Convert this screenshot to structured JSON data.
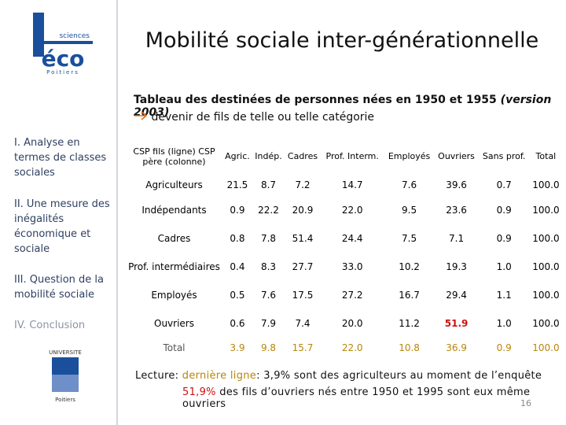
{
  "logo": {
    "top": "sciences",
    "main": "éco",
    "bottom": "Poitiers"
  },
  "university_logo": {
    "top": "UNIVERSITE",
    "bottom": "Poitiers"
  },
  "header": {
    "title": "Mobilité sociale inter-générationnelle"
  },
  "sidebar": [
    "I. Analyse en termes de classes sociales",
    "II. Une mesure des inégalités économique et sociale",
    "III. Question de la mobilité sociale",
    "IV. Conclusion"
  ],
  "caption": {
    "line1": "Tableau des destinées de personnes nées en 1950 et 1955",
    "line1_note": "(version 2003)",
    "line2": "devenir de fils de telle ou telle catégorie"
  },
  "table": {
    "header": [
      "CSP fils  (ligne) CSP père (colonne)",
      "Agric.",
      "Indép.",
      "Cadres",
      "Prof. Interm.",
      "Employés",
      "Ouvriers",
      "Sans prof.",
      "Total"
    ],
    "rows": [
      {
        "label": "Agriculteurs",
        "cells": [
          "21.5",
          "8.7",
          "7.2",
          "14.7",
          "7.6",
          "39.6",
          "0.7",
          "100.0"
        ]
      },
      {
        "label": "Indépendants",
        "cells": [
          "0.9",
          "22.2",
          "20.9",
          "22.0",
          "9.5",
          "23.6",
          "0.9",
          "100.0"
        ]
      },
      {
        "label": "Cadres",
        "cells": [
          "0.8",
          "7.8",
          "51.4",
          "24.4",
          "7.5",
          "7.1",
          "0.9",
          "100.0"
        ]
      },
      {
        "label": "Prof. intermédiaires",
        "cells": [
          "0.4",
          "8.3",
          "27.7",
          "33.0",
          "10.2",
          "19.3",
          "1.0",
          "100.0"
        ]
      },
      {
        "label": "Employés",
        "cells": [
          "0.5",
          "7.6",
          "17.5",
          "27.2",
          "16.7",
          "29.4",
          "1.1",
          "100.0"
        ]
      },
      {
        "label": "Ouvriers",
        "cells": [
          "0.6",
          "7.9",
          "7.4",
          "20.0",
          "11.2",
          "51.9",
          "1.0",
          "100.0"
        ]
      },
      {
        "label": "Total",
        "cells": [
          "3.9",
          "9.8",
          "15.7",
          "22.0",
          "10.8",
          "36.9",
          "0.9",
          "100.0"
        ]
      }
    ]
  },
  "reading": {
    "label": "Lecture:",
    "highlight1": "dernière ligne",
    "text1": ": 3,9% sont des agriculteurs au moment de l’enquête",
    "highlight2": "51,9%",
    "text2": "des fils d’ouvriers nés entre 1950 et 1995 sont eux même ouvriers"
  },
  "page_number": "16"
}
